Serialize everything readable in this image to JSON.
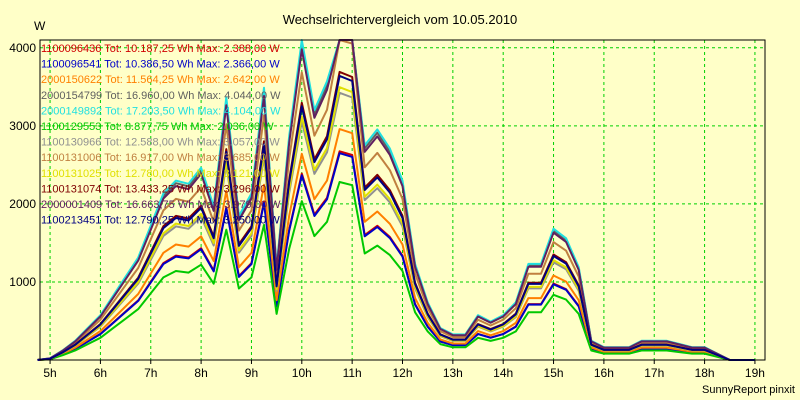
{
  "chart_data": {
    "type": "line",
    "title": "Wechselrichtervergleich vom 10.05.2010",
    "ylabel": "W",
    "footer": "SunnyReport pinxit",
    "ylim": [
      0,
      4100
    ],
    "xlim": [
      4.8,
      19.2
    ],
    "yticks": [
      1000,
      2000,
      3000,
      4000
    ],
    "ytick_labels": [
      "1000",
      "2000",
      "3000",
      "4000"
    ],
    "xticks": [
      5,
      6,
      7,
      8,
      9,
      10,
      11,
      12,
      13,
      14,
      15,
      16,
      17,
      18,
      19
    ],
    "xtick_labels": [
      "5h",
      "6h",
      "7h",
      "8h",
      "9h",
      "10h",
      "11h",
      "12h",
      "13h",
      "14h",
      "15h",
      "16h",
      "17h",
      "18h",
      "19h"
    ],
    "grid": true,
    "legend_position": "top-left",
    "x": [
      4.75,
      5.0,
      5.25,
      5.5,
      5.75,
      6.0,
      6.25,
      6.5,
      6.75,
      7.0,
      7.25,
      7.5,
      7.75,
      8.0,
      8.25,
      8.5,
      8.75,
      9.0,
      9.25,
      9.5,
      9.75,
      10.0,
      10.25,
      10.5,
      10.75,
      11.0,
      11.25,
      11.5,
      11.75,
      12.0,
      12.25,
      12.5,
      12.75,
      13.0,
      13.25,
      13.5,
      13.75,
      14.0,
      14.25,
      14.5,
      14.75,
      15.0,
      15.25,
      15.5,
      15.75,
      16.0,
      16.25,
      16.5,
      16.75,
      17.0,
      17.25,
      17.5,
      17.75,
      18.0,
      18.25,
      18.5,
      18.75,
      19.0
    ],
    "shape": [
      0,
      0.005,
      0.03,
      0.06,
      0.1,
      0.14,
      0.2,
      0.26,
      0.32,
      0.42,
      0.52,
      0.56,
      0.55,
      0.6,
      0.48,
      0.82,
      0.45,
      0.52,
      0.85,
      0.29,
      0.7,
      1.0,
      0.78,
      0.87,
      1.12,
      1.1,
      0.67,
      0.72,
      0.66,
      0.56,
      0.3,
      0.18,
      0.1,
      0.08,
      0.08,
      0.14,
      0.12,
      0.14,
      0.18,
      0.3,
      0.3,
      0.41,
      0.38,
      0.29,
      0.06,
      0.04,
      0.04,
      0.04,
      0.06,
      0.06,
      0.06,
      0.05,
      0.04,
      0.04,
      0.02,
      0.0,
      0.0,
      0.0
    ],
    "series": [
      {
        "name": "1100096436 Tot: 10.187,25 Wh Max: 2.388,00 W",
        "color": "#d00000",
        "peak": 2388
      },
      {
        "name": "1100096541 Tot: 10.386,50 Wh Max: 2.366,00 W",
        "color": "#0000c8",
        "peak": 2366
      },
      {
        "name": "2000150622 Tot: 11.564,25 Wh Max: 2.642,00 W",
        "color": "#ff8000",
        "peak": 2642
      },
      {
        "name": "2000154799 Tot: 16.960,00 Wh Max: 4.044,00 W",
        "color": "#606060",
        "peak": 4044
      },
      {
        "name": "2000149892 Tot: 17.203,50 Wh Max: 4.104,00 W",
        "color": "#20e0e0",
        "peak": 4104
      },
      {
        "name": "1100129553 Tot: 8.877,75 Wh Max: 2.036,00 W",
        "color": "#00c800",
        "peak": 2036
      },
      {
        "name": "1100130966 Tot: 12.588,00 Wh Max: 3.057,00 W",
        "color": "#909090",
        "peak": 3057
      },
      {
        "name": "1100131006 Tot: 16.917,00 Wh Max: 3.685,00 W",
        "color": "#c08040",
        "peak": 3685
      },
      {
        "name": "1100131025 Tot: 12.780,00 Wh Max: 3.121,00 W",
        "color": "#e0e000",
        "peak": 3121
      },
      {
        "name": "1100131074 Tot: 13.433,25 Wh Max: 3.296,00 W",
        "color": "#800000",
        "peak": 3296
      },
      {
        "name": "2000001409 Tot: 16.663,75 Wh Max: 3.979,00 W",
        "color": "#602060",
        "peak": 3979
      },
      {
        "name": "1100213451 Tot: 12.790,25 Wh Max: 3.250,00 W",
        "color": "#000080",
        "peak": 3250
      }
    ]
  }
}
